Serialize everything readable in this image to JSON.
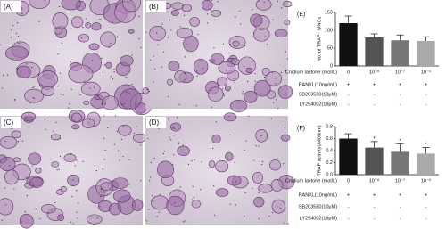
{
  "panels": [
    "(A)",
    "(B)",
    "(C)",
    "(D)"
  ],
  "chart_data": [
    {
      "type": "bar",
      "panel": "(E)",
      "ylabel": "No. of TRAP⁺ MNCs",
      "values": [
        120,
        80,
        72,
        70
      ],
      "errors": [
        20,
        10,
        15,
        12
      ],
      "colors": [
        "#111111",
        "#555555",
        "#777777",
        "#aaaaaa"
      ],
      "ylim": [
        0,
        150
      ],
      "yticks": [
        0,
        50,
        100,
        150
      ],
      "rows": [
        {
          "label": "Cnidium lactone (mol/L)",
          "cells": [
            "0",
            "10⁻⁸",
            "10⁻⁷",
            "10⁻⁶"
          ]
        },
        {
          "label": "RANKL(10ng/mL)",
          "cells": [
            "+",
            "+",
            "+",
            "+"
          ]
        },
        {
          "label": "SB203580(10μM)",
          "cells": [
            "-",
            "-",
            "-",
            "-"
          ]
        },
        {
          "label": "LY294002(19μM)",
          "cells": [
            "-",
            "-",
            "-",
            "-"
          ]
        }
      ]
    },
    {
      "type": "bar",
      "panel": "(F)",
      "ylabel": "TRAP activity(A405nm)",
      "values": [
        0.6,
        0.45,
        0.38,
        0.35
      ],
      "errors": [
        0.08,
        0.1,
        0.13,
        0.1
      ],
      "significance": [
        null,
        "*",
        "*",
        "*"
      ],
      "colors": [
        "#111111",
        "#555555",
        "#777777",
        "#aaaaaa"
      ],
      "ylim": [
        0,
        0.8
      ],
      "yticks": [
        {
          "value": 0,
          "label": "0.0"
        },
        0.2,
        0.4,
        0.6,
        0.8
      ],
      "rows": [
        {
          "label": "Cnidium lactone (mol/L)",
          "cells": [
            "0",
            "10⁻⁸",
            "10⁻⁷",
            "10⁻⁶"
          ]
        },
        {
          "label": "RANKL(10ng/mL)",
          "cells": [
            "+",
            "+",
            "+",
            "+"
          ]
        },
        {
          "label": "SB203580(10μM)",
          "cells": [
            "-",
            "-",
            "-",
            "-"
          ]
        },
        {
          "label": "LY294002(19μM)",
          "cells": [
            "-",
            "-",
            "-",
            "-"
          ]
        }
      ]
    }
  ]
}
